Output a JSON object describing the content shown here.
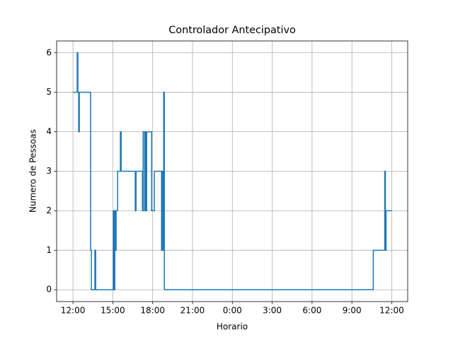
{
  "chart_data": {
    "type": "line",
    "step": "post",
    "title": "Controlador Antecipativo",
    "x_label": "Horario",
    "y_label": "Numero de Pessoas",
    "x": [
      0,
      0.32,
      0.37,
      0.43,
      0.48,
      1.33,
      1.39,
      1.65,
      1.71,
      3.04,
      3.09,
      3.15,
      3.2,
      3.25,
      3.36,
      3.57,
      3.63,
      4.69,
      4.75,
      5.23,
      5.28,
      5.39,
      5.44,
      5.49,
      5.55,
      5.92,
      6.13,
      6.67,
      6.72,
      6.77,
      6.83,
      6.88,
      22.61,
      23.47,
      23.52,
      23.57,
      24.0
    ],
    "series": [
      {
        "name": "Numero de Pessoas",
        "color": "#1f77b4",
        "values": [
          5,
          6,
          5,
          4,
          5,
          1,
          0,
          1,
          0,
          2,
          0,
          2,
          1,
          2,
          3,
          4,
          3,
          2,
          3,
          2,
          4,
          2,
          4,
          2,
          4,
          2,
          3,
          1,
          3,
          1,
          5,
          0,
          1,
          3,
          1,
          2,
          2
        ]
      }
    ],
    "xlim": [
      -1.23,
      25.2
    ],
    "ylim": [
      -0.3,
      6.3
    ],
    "xticks": [
      {
        "value": 0,
        "label": "12:00"
      },
      {
        "value": 3,
        "label": "15:00"
      },
      {
        "value": 6,
        "label": "18:00"
      },
      {
        "value": 9,
        "label": "21:00"
      },
      {
        "value": 12,
        "label": "0:00"
      },
      {
        "value": 15,
        "label": "3:00"
      },
      {
        "value": 18,
        "label": "6:00"
      },
      {
        "value": 21,
        "label": "9:00"
      },
      {
        "value": 24,
        "label": "12:00"
      }
    ],
    "yticks": [
      0,
      1,
      2,
      3,
      4,
      5,
      6
    ],
    "grid": true
  }
}
